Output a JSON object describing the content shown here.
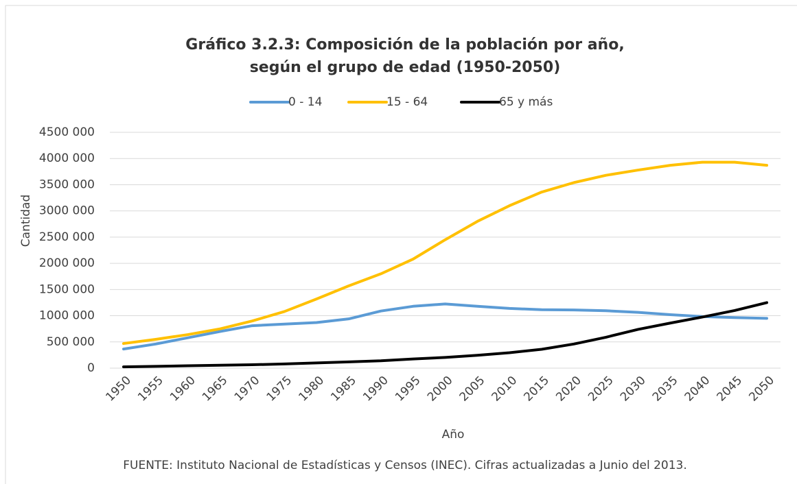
{
  "chart_data": {
    "type": "line",
    "title": [
      "Gráfico 3.2.3: Composición de la población por año,",
      "según el grupo de edad (1950-2050)"
    ],
    "x_label": "Año",
    "y_label": "Cantidad",
    "source": "FUENTE: Instituto Nacional de Estadísticas y Censos (INEC). Cifras actualizadas a Junio del 2013.",
    "categories": [
      "1950",
      "1955",
      "1960",
      "1965",
      "1970",
      "1975",
      "1980",
      "1985",
      "1990",
      "1995",
      "2000",
      "2005",
      "2010",
      "2015",
      "2020",
      "2025",
      "2030",
      "2035",
      "2040",
      "2045",
      "2050"
    ],
    "series": [
      {
        "name": "0 - 14",
        "color": "#5b9bd5",
        "values": [
          365000,
          460000,
          580000,
          700000,
          810000,
          840000,
          870000,
          940000,
          1090000,
          1180000,
          1225000,
          1180000,
          1140000,
          1115000,
          1110000,
          1095000,
          1065000,
          1020000,
          985000,
          965000,
          950000
        ]
      },
      {
        "name": "15 - 64",
        "color": "#ffc000",
        "values": [
          470000,
          550000,
          640000,
          750000,
          900000,
          1080000,
          1320000,
          1570000,
          1800000,
          2080000,
          2450000,
          2800000,
          3100000,
          3360000,
          3540000,
          3680000,
          3780000,
          3870000,
          3930000,
          3930000,
          3870000
        ]
      },
      {
        "name": "65 y más",
        "color": "#000000",
        "values": [
          25000,
          35000,
          45000,
          55000,
          65000,
          80000,
          100000,
          120000,
          140000,
          175000,
          205000,
          245000,
          295000,
          360000,
          460000,
          590000,
          740000,
          860000,
          975000,
          1100000,
          1250000
        ]
      }
    ],
    "ylim": [
      0,
      4500000
    ],
    "yticks": [
      0,
      {
        "value": 500000,
        "label": "500 000"
      },
      {
        "value": 1000000,
        "label": "1000 000"
      },
      {
        "value": 1500000,
        "label": "1500 000"
      },
      {
        "value": 2000000,
        "label": "2000 000"
      },
      {
        "value": 2500000,
        "label": "2500 000"
      },
      {
        "value": 3000000,
        "label": "3000 000"
      },
      {
        "value": 3500000,
        "label": "3500 000"
      },
      {
        "value": 4000000,
        "label": "4000 000"
      },
      {
        "value": 4500000,
        "label": "4500 000"
      }
    ],
    "grid": true,
    "legend": "top"
  }
}
